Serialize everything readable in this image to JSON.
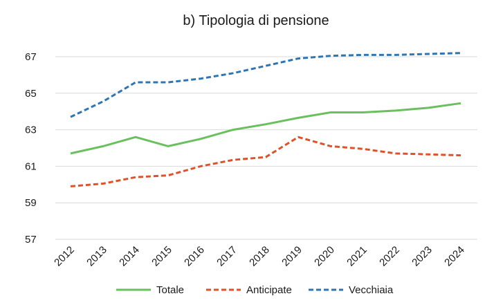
{
  "chart_data": {
    "type": "line",
    "title": "b) Tipologia di pensione",
    "xlabel": "",
    "ylabel": "",
    "x": [
      "2012",
      "2013",
      "2014",
      "2015",
      "2016",
      "2017",
      "2018",
      "2019",
      "2020",
      "2021",
      "2022",
      "2023",
      "2024"
    ],
    "yticks": [
      "57",
      "59",
      "61",
      "63",
      "65",
      "67"
    ],
    "ylim": [
      57,
      67
    ],
    "grid": "horizontal",
    "legend": "bottom",
    "series": [
      {
        "name": "Totale",
        "color": "#6abf5e",
        "dash": "solid",
        "values": [
          61.7,
          62.1,
          62.6,
          62.1,
          62.5,
          63.0,
          63.3,
          63.65,
          63.95,
          63.95,
          64.05,
          64.2,
          64.45
        ]
      },
      {
        "name": "Anticipate",
        "color": "#e2502a",
        "dash": "dashed",
        "values": [
          59.9,
          60.05,
          60.4,
          60.5,
          61.0,
          61.35,
          61.5,
          62.6,
          62.1,
          61.95,
          61.7,
          61.65,
          61.6
        ]
      },
      {
        "name": "Vecchiaia",
        "color": "#2e75b6",
        "dash": "dashed",
        "values": [
          63.7,
          64.55,
          65.6,
          65.6,
          65.8,
          66.1,
          66.5,
          66.9,
          67.05,
          67.1,
          67.1,
          67.15,
          67.2
        ]
      }
    ]
  }
}
